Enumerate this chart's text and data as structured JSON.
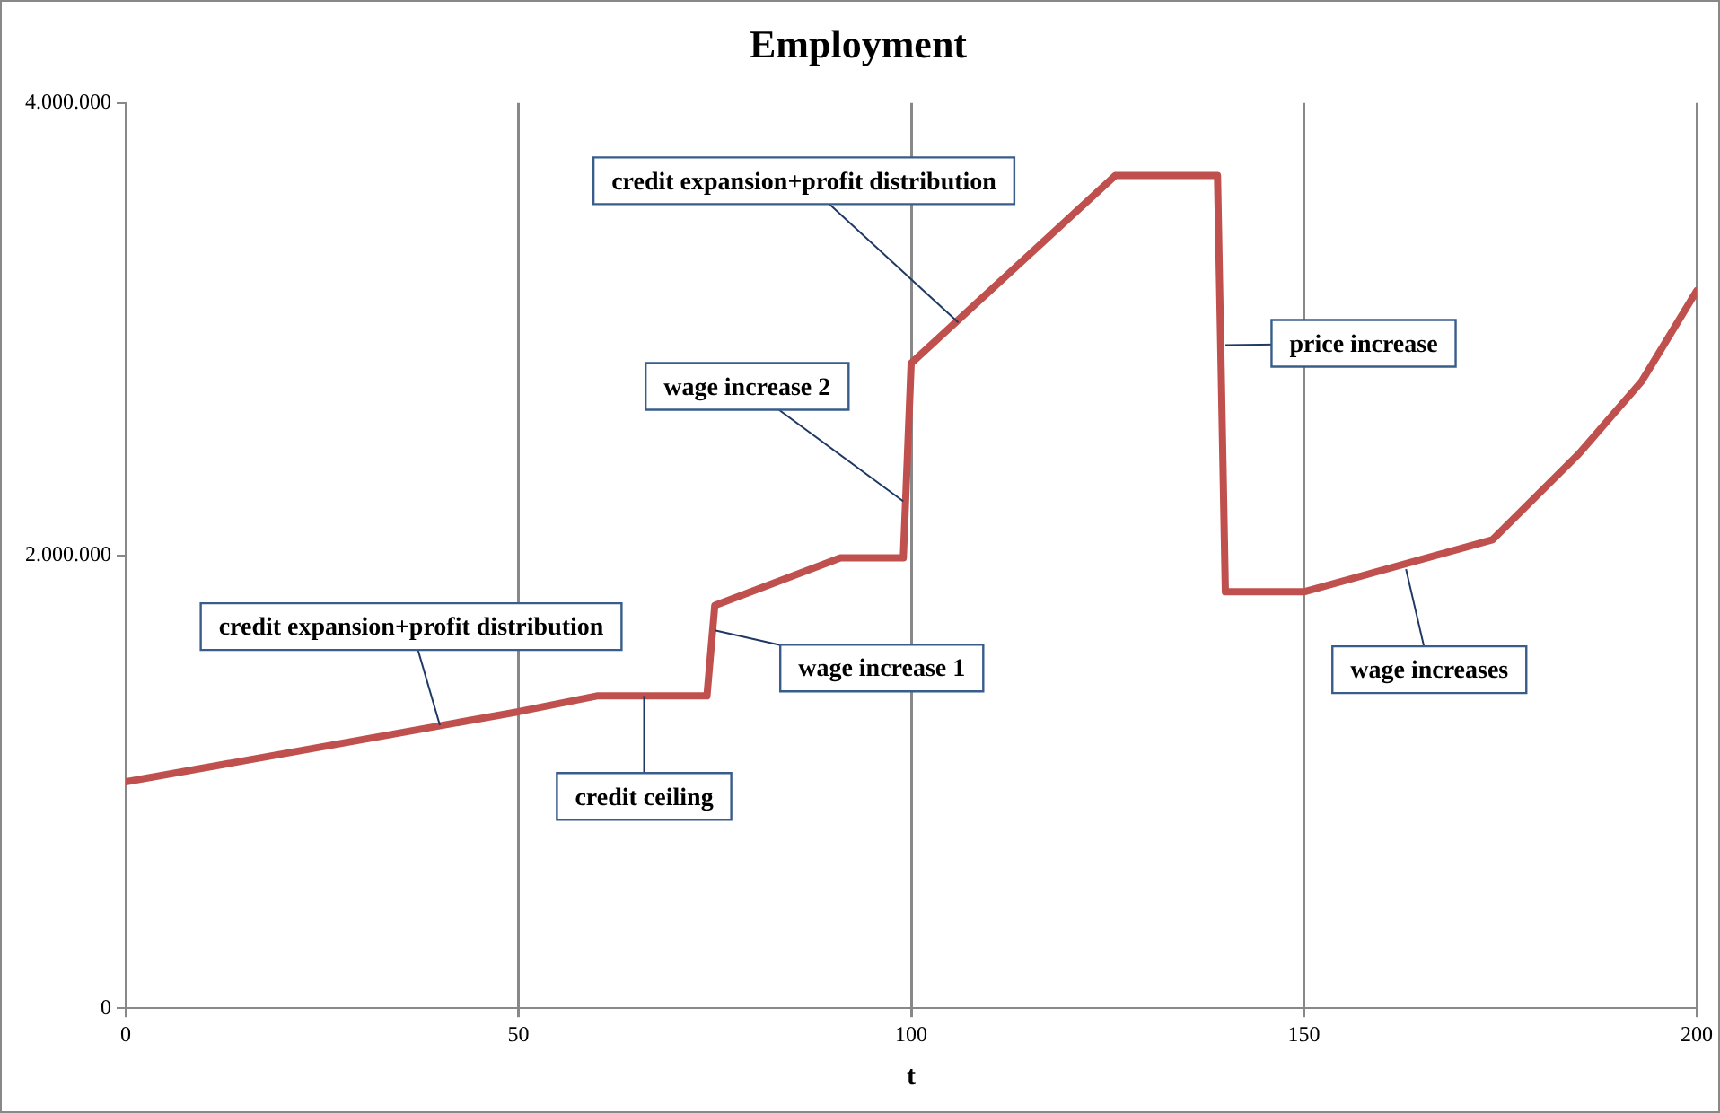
{
  "chart_data": {
    "type": "line",
    "title": "Employment",
    "xlabel": "t",
    "x": [
      0,
      50,
      60,
      74,
      75,
      91,
      99,
      100,
      126,
      139,
      140,
      150,
      174,
      185,
      193,
      200
    ],
    "series": [
      {
        "color": "#c0504d",
        "values": [
          1000000,
          1310000,
          1380000,
          1380000,
          1780000,
          1990000,
          1990000,
          2850000,
          3680000,
          3680000,
          1840000,
          1840000,
          2070000,
          2450000,
          2770000,
          3170000
        ]
      }
    ],
    "xlim": [
      0,
      200
    ],
    "xticks": [
      0,
      50,
      100,
      150,
      200
    ],
    "ylim": [
      0,
      4000000
    ],
    "yticks": [
      {
        "value": 0,
        "label": "0"
      },
      {
        "value": 2000000,
        "label": "2.000.000"
      },
      {
        "value": 4000000,
        "label": "4.000.000"
      }
    ],
    "grid": "x",
    "legend": false,
    "marker": "none",
    "line_style": "solid",
    "annotations": [
      {
        "text": "credit expansion+profit distribution",
        "x": 40,
        "y": 1250000
      },
      {
        "text": "credit ceiling",
        "x": 66,
        "y": 1380000
      },
      {
        "text": "wage increase 1",
        "x": 75,
        "y": 1670000
      },
      {
        "text": "wage increase 2",
        "x": 99,
        "y": 2240000
      },
      {
        "text": "credit expansion+profit distribution",
        "x": 106,
        "y": 3030000
      },
      {
        "text": "price increase",
        "x": 140,
        "y": 2930000
      },
      {
        "text": "wage increases",
        "x": 163,
        "y": 1940000
      }
    ]
  }
}
